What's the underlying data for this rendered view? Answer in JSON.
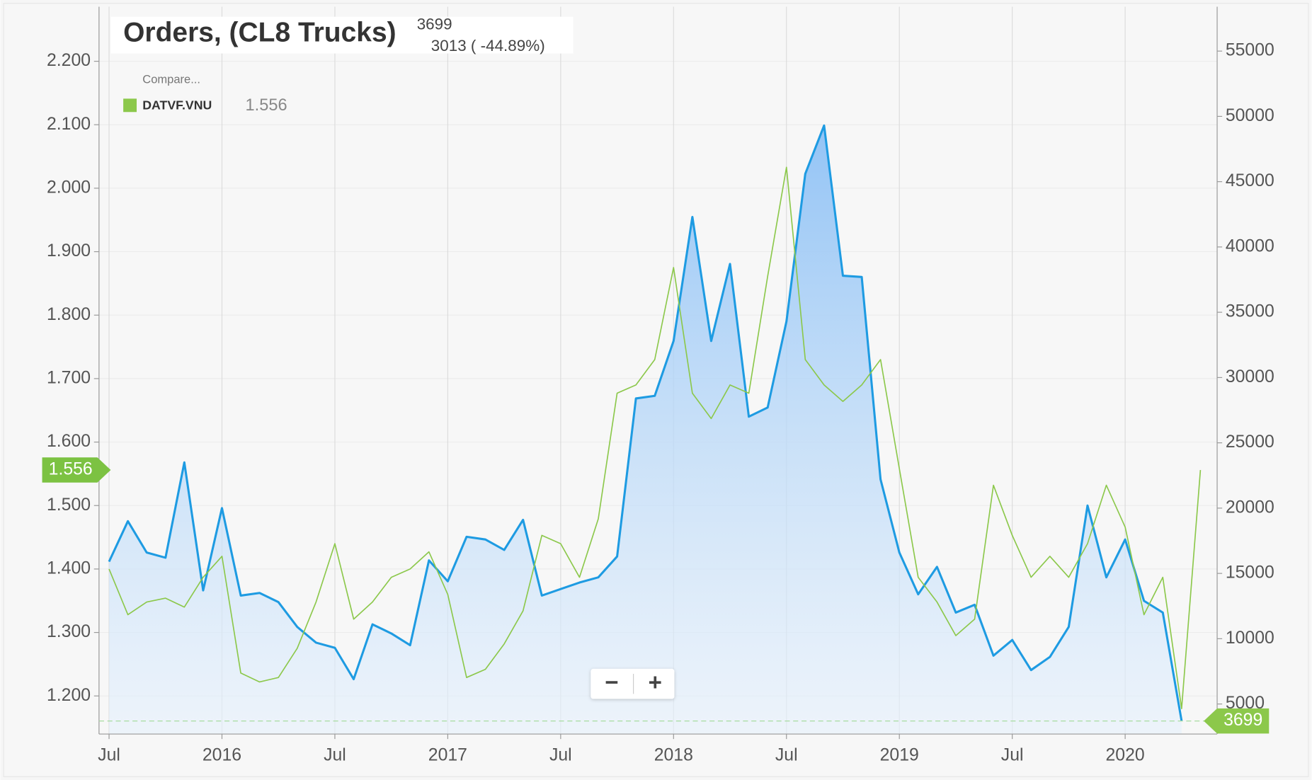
{
  "chart_data": {
    "type": "line",
    "title": "Orders, (CL8 Trucks)",
    "subtitle": "3013 ( -44.89%)",
    "compare_label": "Compare...",
    "zoom_controls": [
      "−",
      "+"
    ],
    "categories": [
      "Jul",
      null,
      null,
      null,
      null,
      null,
      "2016",
      null,
      null,
      null,
      null,
      null,
      "Jul",
      null,
      null,
      null,
      null,
      null,
      "2017",
      null,
      null,
      null,
      null,
      null,
      "Jul",
      null,
      null,
      null,
      null,
      null,
      "2018",
      null,
      null,
      null,
      null,
      null,
      "Jul",
      null,
      null,
      null,
      null,
      null,
      "2019",
      null,
      null,
      null,
      null,
      null,
      "Jul",
      null,
      null,
      null,
      null,
      null,
      "2020",
      null,
      null,
      null,
      null
    ],
    "series": [
      {
        "name": "DATVF.VNU",
        "color": "#8cc84b",
        "axis": "y",
        "values": [
          1.4,
          1.328,
          1.348,
          1.354,
          1.34,
          1.387,
          1.42,
          1.236,
          1.222,
          1.229,
          1.275,
          1.348,
          1.44,
          1.321,
          1.348,
          1.387,
          1.4,
          1.427,
          1.36,
          1.229,
          1.242,
          1.282,
          1.334,
          1.453,
          1.44,
          1.387,
          1.479,
          1.677,
          1.69,
          1.73,
          1.875,
          1.677,
          1.637,
          1.69,
          1.677,
          1.861,
          2.033,
          1.73,
          1.69,
          1.664,
          1.69,
          1.73,
          1.558,
          1.387,
          1.348,
          1.295,
          1.321,
          1.532,
          1.453,
          1.387,
          1.42,
          1.387,
          1.44,
          1.532,
          1.466,
          1.328,
          1.387,
          1.18,
          1.556
        ]
      },
      {
        "color": "#1e9be2",
        "axis": "y2",
        "area": true,
        "values": [
          15900,
          19000,
          16600,
          16200,
          23500,
          13700,
          20000,
          13300,
          13500,
          12800,
          10900,
          9700,
          9300,
          6900,
          11100,
          10400,
          9500,
          16000,
          14400,
          17800,
          17600,
          16800,
          19100,
          13300,
          13800,
          14300,
          14700,
          16300,
          28400,
          28600,
          32800,
          42300,
          32800,
          38700,
          27000,
          27700,
          34300,
          45600,
          49300,
          37800,
          37700,
          22200,
          16600,
          13400,
          15500,
          12000,
          12600,
          8700,
          9900,
          7600,
          8600,
          10900,
          20200,
          14700,
          17600,
          12900,
          12000,
          3699,
          null
        ]
      }
    ],
    "ylim": [
      1.14,
      2.286
    ],
    "yticks": [
      {
        "value": 1.2,
        "label": "1.200"
      },
      {
        "value": 1.3,
        "label": "1.300"
      },
      {
        "value": 1.4,
        "label": "1.400"
      },
      {
        "value": 1.5,
        "label": "1.500"
      },
      {
        "value": 1.6,
        "label": "1.600"
      },
      {
        "value": 1.7,
        "label": "1.700"
      },
      {
        "value": 1.8,
        "label": "1.800"
      },
      {
        "value": 1.9,
        "label": "1.900"
      },
      {
        "value": 2.0,
        "label": "2.000"
      },
      {
        "value": 2.1,
        "label": "2.100"
      },
      {
        "value": 2.2,
        "label": "2.200"
      }
    ],
    "y2lim": [
      2700,
      58400
    ],
    "y2ticks": [
      5000,
      10000,
      15000,
      20000,
      25000,
      30000,
      35000,
      40000,
      45000,
      50000,
      55000
    ],
    "grid": true
  }
}
